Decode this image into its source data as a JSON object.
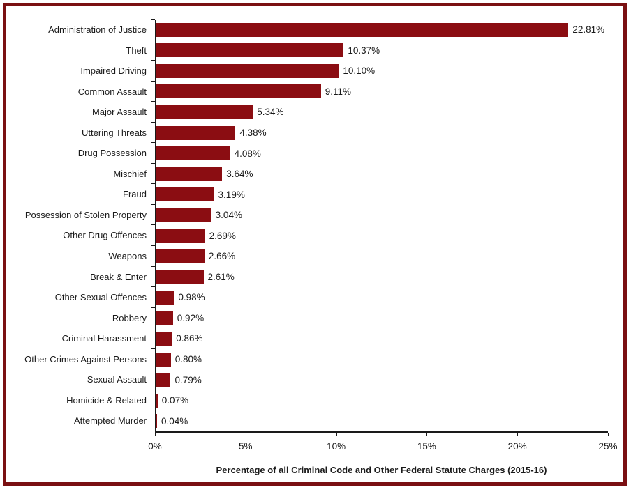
{
  "chart_data": {
    "type": "bar",
    "orientation": "horizontal",
    "categories": [
      "Administration of Justice",
      "Theft",
      "Impaired Driving",
      "Common Assault",
      "Major Assault",
      "Uttering Threats",
      "Drug Possession",
      "Mischief",
      "Fraud",
      "Possession of Stolen Property",
      "Other Drug Offences",
      "Weapons",
      "Break & Enter",
      "Other Sexual Offences",
      "Robbery",
      "Criminal Harassment",
      "Other Crimes Against Persons",
      "Sexual Assault",
      "Homicide & Related",
      "Attempted Murder"
    ],
    "values": [
      22.81,
      10.37,
      10.1,
      9.11,
      5.34,
      4.38,
      4.08,
      3.64,
      3.19,
      3.04,
      2.69,
      2.66,
      2.61,
      0.98,
      0.92,
      0.86,
      0.8,
      0.79,
      0.07,
      0.04
    ],
    "value_labels": [
      "22.81%",
      "10.37%",
      "10.10%",
      "9.11%",
      "5.34%",
      "4.38%",
      "4.08%",
      "3.64%",
      "3.19%",
      "3.04%",
      "2.69%",
      "2.66%",
      "2.61%",
      "0.98%",
      "0.92%",
      "0.86%",
      "0.80%",
      "0.79%",
      "0.07%",
      "0.04%"
    ],
    "title": "",
    "xlabel": "Percentage of all Criminal Code and Other Federal Statute Charges (2015-16)",
    "ylabel": "",
    "x_ticks": [
      "0%",
      "5%",
      "10%",
      "15%",
      "20%",
      "25%"
    ],
    "xlim": [
      0,
      25
    ],
    "grid": false,
    "legend": "none",
    "colors": {
      "bar": "#8B0D12",
      "frame_border": "#7A1012",
      "axis": "#1A1A1A",
      "text": "#1A1A1A"
    }
  }
}
